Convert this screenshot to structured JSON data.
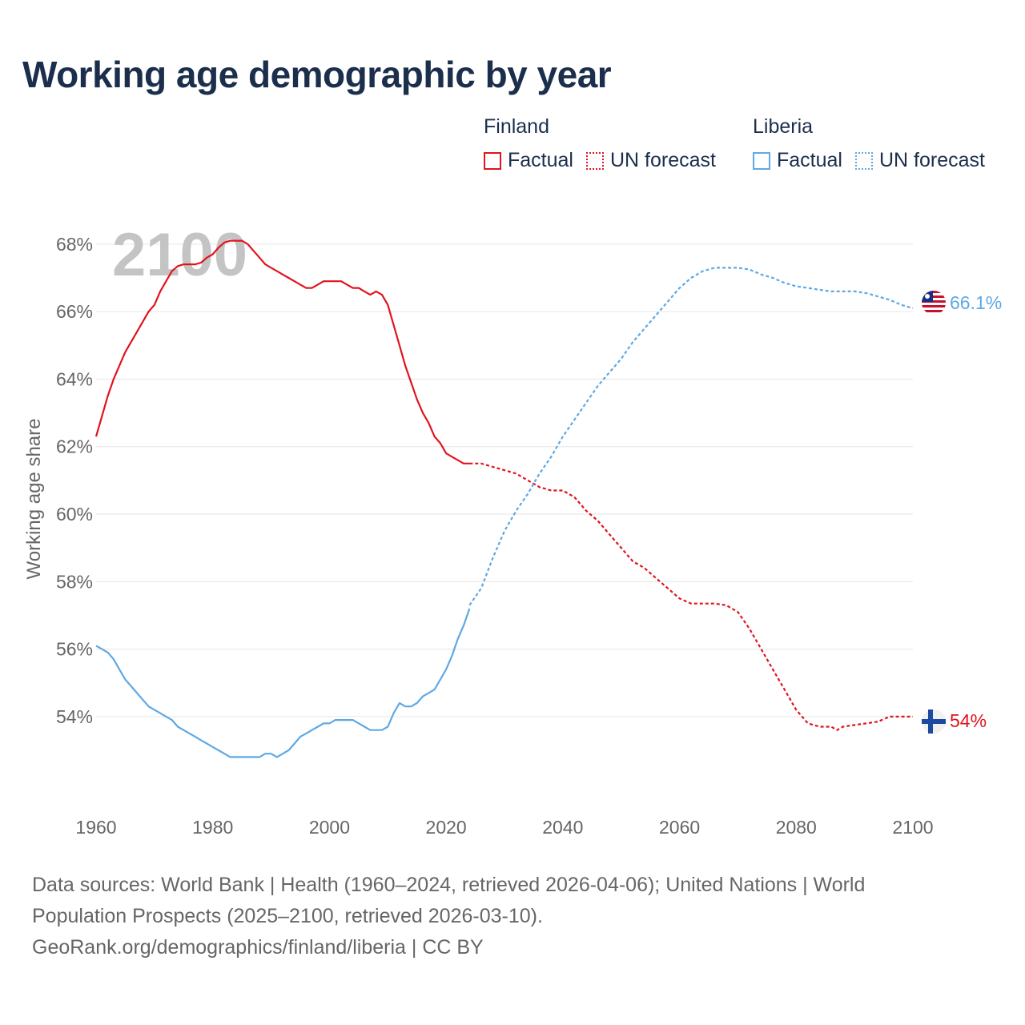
{
  "title": "Working age demographic by year",
  "legend": {
    "finland": {
      "name": "Finland",
      "factual": "Factual",
      "forecast": "UN forecast"
    },
    "liberia": {
      "name": "Liberia",
      "factual": "Factual",
      "forecast": "UN forecast"
    }
  },
  "footer": {
    "sources": "Data sources: World Bank | Health (1960–2024, retrieved 2026-04-06); United Nations | World Population Prospects (2025–2100, retrieved 2026-03-10).",
    "link": "GeoRank.org/demographics/finland/liberia | CC BY"
  },
  "colors": {
    "finland": "#e0141e",
    "liberia": "#5fa8e3",
    "grid": "#e6e6e6",
    "axis_text": "#666666",
    "title": "#1b2f4d",
    "year_watermark": "#c4c4c4"
  },
  "chart_data": {
    "type": "line",
    "title": "Working age demographic by year",
    "xlabel": "",
    "ylabel": "Working age share",
    "xlim": [
      1960,
      2100
    ],
    "ylim": [
      51.6,
      68.4
    ],
    "x_ticks": [
      1960,
      1980,
      2000,
      2020,
      2040,
      2060,
      2080,
      2100
    ],
    "x_tick_labels": [
      "1960",
      "1980",
      "2000",
      "2020",
      "2040",
      "2060",
      "2080",
      "2100"
    ],
    "y_ticks": [
      54,
      56,
      58,
      60,
      62,
      64,
      66,
      68
    ],
    "y_tick_labels": [
      "54%",
      "56%",
      "58%",
      "60%",
      "62%",
      "64%",
      "66%",
      "68%"
    ],
    "year_label": "2100",
    "series": [
      {
        "name": "Finland",
        "segment": "Factual",
        "x": [
          1960,
          1961,
          1962,
          1963,
          1964,
          1965,
          1966,
          1967,
          1968,
          1969,
          1970,
          1971,
          1972,
          1973,
          1974,
          1975,
          1976,
          1977,
          1978,
          1979,
          1980,
          1981,
          1982,
          1983,
          1984,
          1985,
          1986,
          1987,
          1988,
          1989,
          1990,
          1991,
          1992,
          1993,
          1994,
          1995,
          1996,
          1997,
          1998,
          1999,
          2000,
          2001,
          2002,
          2003,
          2004,
          2005,
          2006,
          2007,
          2008,
          2009,
          2010,
          2011,
          2012,
          2013,
          2014,
          2015,
          2016,
          2017,
          2018,
          2019,
          2020,
          2021,
          2022,
          2023,
          2024
        ],
        "values": [
          62.3,
          62.9,
          63.5,
          64.0,
          64.4,
          64.8,
          65.1,
          65.4,
          65.7,
          66.0,
          66.2,
          66.6,
          66.9,
          67.2,
          67.35,
          67.4,
          67.4,
          67.4,
          67.45,
          67.6,
          67.7,
          67.9,
          68.05,
          68.1,
          68.1,
          68.1,
          68.0,
          67.8,
          67.6,
          67.4,
          67.3,
          67.2,
          67.1,
          67.0,
          66.9,
          66.8,
          66.7,
          66.7,
          66.8,
          66.9,
          66.9,
          66.9,
          66.9,
          66.8,
          66.7,
          66.7,
          66.6,
          66.5,
          66.6,
          66.5,
          66.2,
          65.6,
          65.0,
          64.4,
          63.9,
          63.4,
          63.0,
          62.7,
          62.3,
          62.1,
          61.8,
          61.7,
          61.6,
          61.5,
          61.5
        ]
      },
      {
        "name": "Finland",
        "segment": "UN forecast",
        "x": [
          2024,
          2026,
          2028,
          2030,
          2032,
          2034,
          2036,
          2038,
          2040,
          2042,
          2044,
          2046,
          2048,
          2050,
          2052,
          2054,
          2056,
          2058,
          2060,
          2062,
          2064,
          2066,
          2068,
          2070,
          2072,
          2074,
          2076,
          2078,
          2080,
          2082,
          2084,
          2086,
          2087,
          2088,
          2090,
          2092,
          2094,
          2096,
          2098,
          2100
        ],
        "values": [
          61.5,
          61.5,
          61.4,
          61.3,
          61.2,
          61.0,
          60.8,
          60.7,
          60.7,
          60.5,
          60.1,
          59.8,
          59.4,
          59.0,
          58.6,
          58.4,
          58.1,
          57.8,
          57.5,
          57.35,
          57.35,
          57.35,
          57.3,
          57.1,
          56.6,
          56.0,
          55.4,
          54.8,
          54.2,
          53.8,
          53.7,
          53.7,
          53.6,
          53.7,
          53.75,
          53.8,
          53.85,
          54.0,
          54.0,
          54.0
        ]
      },
      {
        "name": "Liberia",
        "segment": "Factual",
        "x": [
          1960,
          1961,
          1962,
          1963,
          1964,
          1965,
          1966,
          1967,
          1968,
          1969,
          1970,
          1971,
          1972,
          1973,
          1974,
          1975,
          1976,
          1977,
          1978,
          1979,
          1980,
          1981,
          1982,
          1983,
          1984,
          1985,
          1986,
          1987,
          1988,
          1989,
          1990,
          1991,
          1992,
          1993,
          1994,
          1995,
          1996,
          1997,
          1998,
          1999,
          2000,
          2001,
          2002,
          2003,
          2004,
          2005,
          2006,
          2007,
          2008,
          2009,
          2010,
          2011,
          2012,
          2013,
          2014,
          2015,
          2016,
          2017,
          2018,
          2019,
          2020,
          2021,
          2022,
          2023,
          2024
        ],
        "values": [
          56.1,
          56.0,
          55.9,
          55.7,
          55.4,
          55.1,
          54.9,
          54.7,
          54.5,
          54.3,
          54.2,
          54.1,
          54.0,
          53.9,
          53.7,
          53.6,
          53.5,
          53.4,
          53.3,
          53.2,
          53.1,
          53.0,
          52.9,
          52.8,
          52.8,
          52.8,
          52.8,
          52.8,
          52.8,
          52.9,
          52.9,
          52.8,
          52.9,
          53.0,
          53.2,
          53.4,
          53.5,
          53.6,
          53.7,
          53.8,
          53.8,
          53.9,
          53.9,
          53.9,
          53.9,
          53.8,
          53.7,
          53.6,
          53.6,
          53.6,
          53.7,
          54.1,
          54.4,
          54.3,
          54.3,
          54.4,
          54.6,
          54.7,
          54.8,
          55.1,
          55.4,
          55.8,
          56.3,
          56.7,
          57.2
        ]
      },
      {
        "name": "Liberia",
        "segment": "UN forecast",
        "x": [
          2024,
          2026,
          2028,
          2030,
          2032,
          2034,
          2036,
          2038,
          2040,
          2042,
          2044,
          2046,
          2048,
          2050,
          2052,
          2054,
          2056,
          2058,
          2060,
          2062,
          2064,
          2066,
          2068,
          2070,
          2072,
          2074,
          2076,
          2078,
          2080,
          2082,
          2084,
          2086,
          2088,
          2090,
          2092,
          2094,
          2096,
          2098,
          2100
        ],
        "values": [
          57.3,
          57.8,
          58.7,
          59.5,
          60.1,
          60.6,
          61.2,
          61.7,
          62.3,
          62.8,
          63.3,
          63.8,
          64.2,
          64.6,
          65.1,
          65.5,
          65.9,
          66.3,
          66.7,
          67.0,
          67.2,
          67.3,
          67.3,
          67.3,
          67.25,
          67.1,
          67.0,
          66.85,
          66.75,
          66.7,
          66.65,
          66.6,
          66.6,
          66.6,
          66.55,
          66.45,
          66.35,
          66.2,
          66.1
        ]
      }
    ],
    "end_labels": [
      {
        "name": "Liberia",
        "value": 66.1,
        "label": "66.1%"
      },
      {
        "name": "Finland",
        "value": 54.0,
        "label": "54%"
      }
    ]
  }
}
